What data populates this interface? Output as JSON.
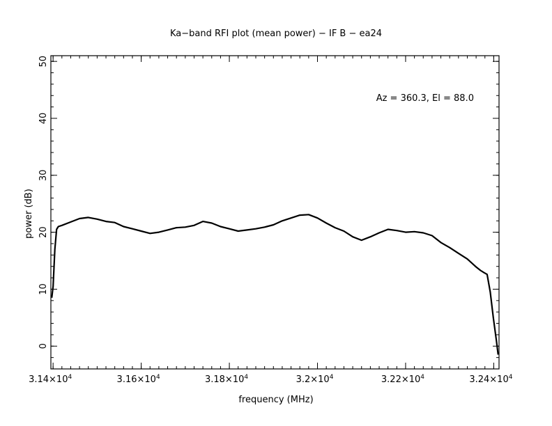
{
  "chart_data": {
    "type": "line",
    "title": "Ka−band RFI plot (mean power) − IF B − ea24",
    "xlabel": "frequency (MHz)",
    "ylabel": "power (dB)",
    "annotation": "Az = 360.3, El = 88.0",
    "xlim": [
      31395,
      32412
    ],
    "ylim": [
      -4,
      51
    ],
    "x_ticks": [
      {
        "value": 31400,
        "mantissa": "3.14×10",
        "exp": "4"
      },
      {
        "value": 31600,
        "mantissa": "3.16×10",
        "exp": "4"
      },
      {
        "value": 31800,
        "mantissa": "3.18×10",
        "exp": "4"
      },
      {
        "value": 32000,
        "mantissa": "3.2×10",
        "exp": "4"
      },
      {
        "value": 32200,
        "mantissa": "3.22×10",
        "exp": "4"
      },
      {
        "value": 32400,
        "mantissa": "3.24×10",
        "exp": "4"
      }
    ],
    "y_ticks": [
      0,
      10,
      20,
      30,
      40,
      50
    ],
    "x_minor_step": 20,
    "y_minor_step": 2,
    "grid": false,
    "series": [
      {
        "color": "#000000",
        "x": [
          31397,
          31400,
          31404,
          31408,
          31412,
          31420,
          31440,
          31460,
          31480,
          31500,
          31520,
          31540,
          31560,
          31580,
          31600,
          31620,
          31640,
          31660,
          31680,
          31700,
          31720,
          31740,
          31760,
          31780,
          31800,
          31820,
          31840,
          31860,
          31880,
          31900,
          31920,
          31940,
          31960,
          31980,
          32000,
          32020,
          32040,
          32060,
          32080,
          32100,
          32120,
          32140,
          32160,
          32180,
          32200,
          32220,
          32240,
          32260,
          32280,
          32300,
          32320,
          32340,
          32360,
          32370,
          32378,
          32385,
          32392,
          32399,
          32406,
          32410
        ],
        "y": [
          8.5,
          10.5,
          17,
          20.5,
          21,
          21.2,
          21.8,
          22.4,
          22.6,
          22.3,
          21.9,
          21.7,
          21.0,
          20.6,
          20.2,
          19.8,
          20.0,
          20.4,
          20.8,
          20.9,
          21.2,
          21.9,
          21.6,
          21.0,
          20.6,
          20.2,
          20.4,
          20.6,
          20.9,
          21.3,
          22.0,
          22.5,
          23.0,
          23.1,
          22.5,
          21.6,
          20.8,
          20.2,
          19.2,
          18.6,
          19.2,
          19.9,
          20.5,
          20.3,
          20.0,
          20.1,
          19.9,
          19.4,
          18.2,
          17.3,
          16.3,
          15.3,
          13.9,
          13.3,
          12.9,
          12.6,
          9.5,
          5.0,
          1.0,
          -1.5
        ]
      }
    ]
  }
}
